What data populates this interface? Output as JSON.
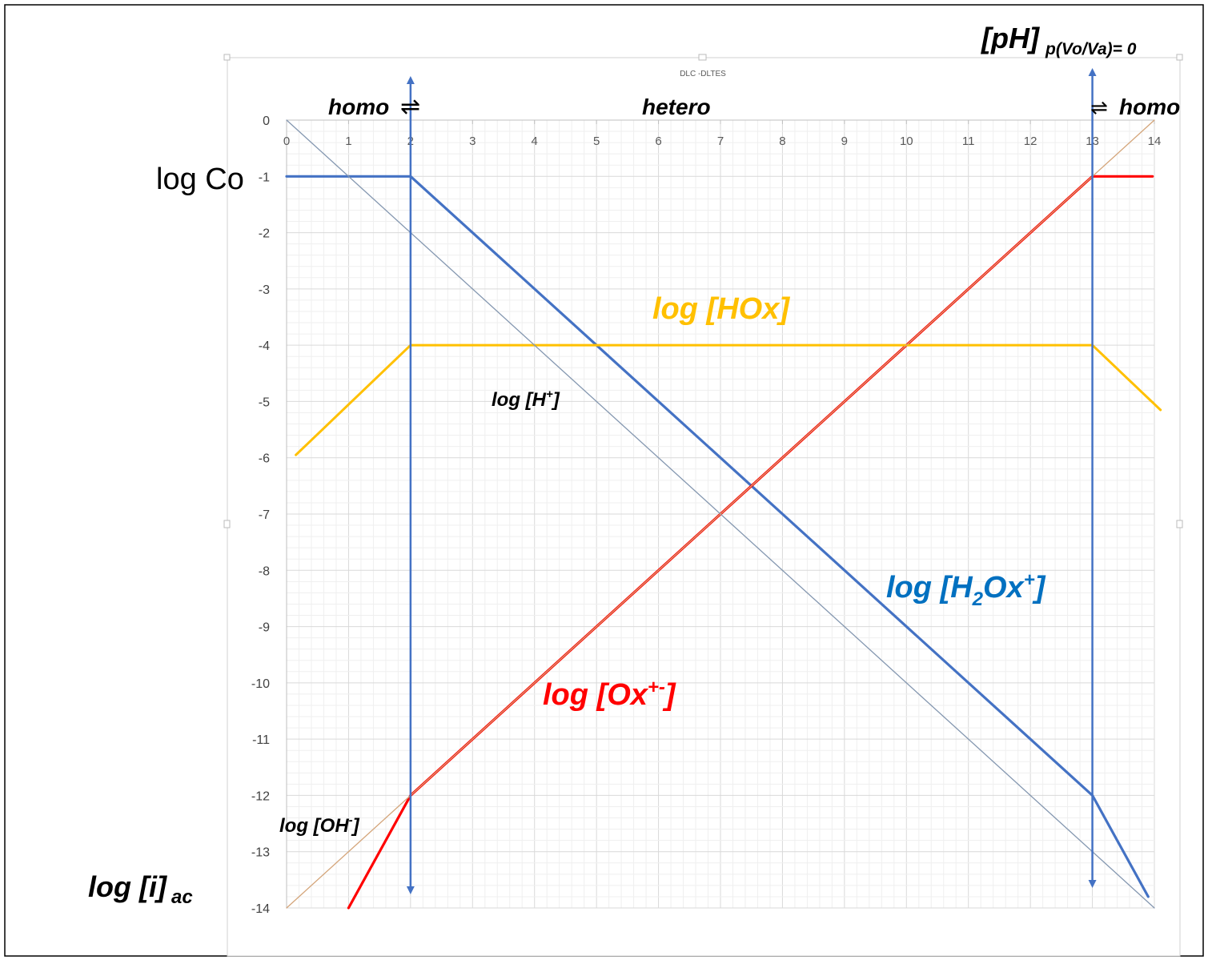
{
  "chart_data": {
    "type": "line",
    "title": "DLC -DLTES",
    "xlim": [
      0,
      14
    ],
    "ylim": [
      -14,
      0
    ],
    "x_ticks": [
      "0",
      "1",
      "2",
      "3",
      "4",
      "5",
      "6",
      "7",
      "8",
      "9",
      "10",
      "11",
      "12",
      "13",
      "14"
    ],
    "y_ticks": [
      "0",
      "-1",
      "-2",
      "-3",
      "-4",
      "-5",
      "-6",
      "-7",
      "-8",
      "-9",
      "-10",
      "-11",
      "-12",
      "-13",
      "-14"
    ],
    "grid": true,
    "axis_labels": {
      "log_co": "log Co",
      "log_i_main": "log [i]",
      "log_i_sub": "ac",
      "ph_top_main": "[pH]",
      "ph_top_sub": "p(Vo/Va)= 0"
    },
    "regions": {
      "homo_left": "homo",
      "hetero": "hetero",
      "homo_right": "homo",
      "eq_left": "⇌",
      "eq_right": "⇌"
    },
    "boundaries": [
      2,
      13
    ],
    "colors": {
      "blue": "#4472c4",
      "red": "#ff0000",
      "orange": "#ffc000",
      "gray": "#8497b0",
      "tan": "#d4a57a",
      "label_blue": "#0070c0",
      "label_orange": "#ffc000",
      "label_red": "#ff0000"
    },
    "series": [
      {
        "name": "log [H2Ox+]",
        "color": "#4472c4",
        "points": [
          [
            0,
            -1
          ],
          [
            2,
            -1
          ],
          [
            13,
            -12
          ],
          [
            13.9,
            -13.8
          ]
        ]
      },
      {
        "name": "log [Ox+-]",
        "color": "#ff0000",
        "points": [
          [
            1,
            -14
          ],
          [
            2,
            -12
          ],
          [
            13,
            -1
          ],
          [
            13.97,
            -1
          ]
        ]
      },
      {
        "name": "log [HOx]",
        "color": "#ffc000",
        "points": [
          [
            0.15,
            -5.95
          ],
          [
            2,
            -4
          ],
          [
            13,
            -4
          ],
          [
            14.1,
            -5.15
          ]
        ]
      },
      {
        "name": "log [H+]",
        "color": "#8497b0",
        "points": [
          [
            0,
            0
          ],
          [
            14,
            -14
          ]
        ]
      },
      {
        "name": "log [OH-]",
        "color": "#d4a57a",
        "points": [
          [
            0,
            -14
          ],
          [
            14,
            0
          ]
        ]
      }
    ],
    "labels": {
      "hox": "log [HOx]",
      "h": "log [H",
      "h_sup": "+",
      "oh": "log [OH",
      "oh_sup": "-",
      "h2ox_a": "log [H",
      "h2ox_sub": "2",
      "h2ox_b": "Ox",
      "h2ox_sup": "+",
      "ox_a": "log [Ox",
      "ox_sup": "+-",
      "close": "]"
    }
  }
}
